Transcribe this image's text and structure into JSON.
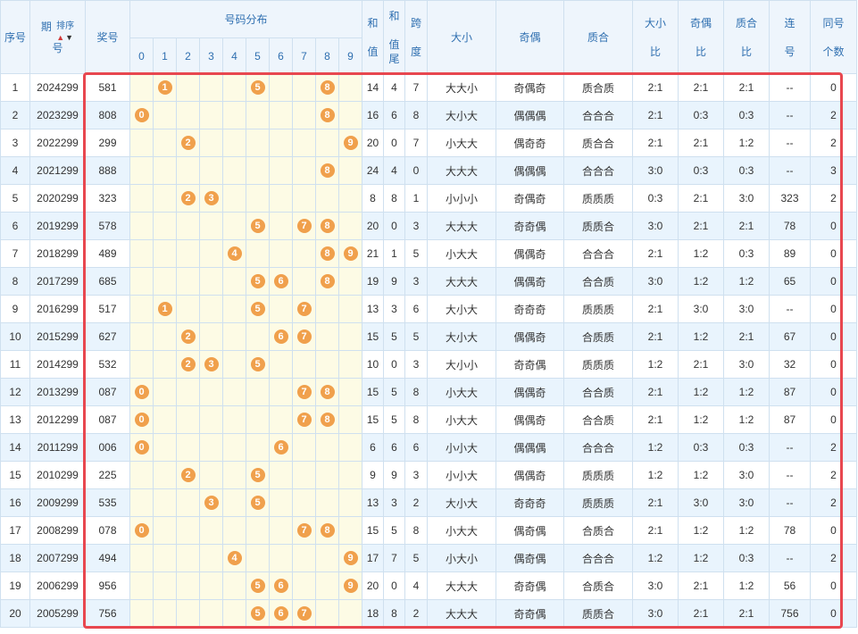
{
  "headers": {
    "seq": "序号",
    "issue_top": "期",
    "issue_bottom": "号",
    "sort_label": "排序",
    "prize": "奖号",
    "distribution": "号码分布",
    "digits": [
      "0",
      "1",
      "2",
      "3",
      "4",
      "5",
      "6",
      "7",
      "8",
      "9"
    ],
    "sum_top": "和",
    "sum_bottom": "值",
    "tail_1": "和",
    "tail_2": "值",
    "tail_3": "尾",
    "span_top": "跨",
    "span_bottom": "度",
    "size": "大小",
    "parity": "奇偶",
    "prime": "质合",
    "size_ratio_top": "大小",
    "size_ratio_bottom": "比",
    "parity_ratio_top": "奇偶",
    "parity_ratio_bottom": "比",
    "prime_ratio_top": "质合",
    "prime_ratio_bottom": "比",
    "consec_top": "连",
    "consec_bottom": "号",
    "same_top": "同号",
    "same_bottom": "个数"
  },
  "colors": {
    "ball": "#f0a04c",
    "highlight_frame": "#e8474f",
    "header_text": "#2f6fb0"
  },
  "rows": [
    {
      "seq": "1",
      "issue": "2024299",
      "prize": "581",
      "sum": "14",
      "tail": "4",
      "span": "7",
      "size": "大大小",
      "parity": "奇偶奇",
      "prime": "质合质",
      "size_ratio": "2:1",
      "parity_ratio": "2:1",
      "prime_ratio": "2:1",
      "consec": "--",
      "same": "0"
    },
    {
      "seq": "2",
      "issue": "2023299",
      "prize": "808",
      "sum": "16",
      "tail": "6",
      "span": "8",
      "size": "大小大",
      "parity": "偶偶偶",
      "prime": "合合合",
      "size_ratio": "2:1",
      "parity_ratio": "0:3",
      "prime_ratio": "0:3",
      "consec": "--",
      "same": "2"
    },
    {
      "seq": "3",
      "issue": "2022299",
      "prize": "299",
      "sum": "20",
      "tail": "0",
      "span": "7",
      "size": "小大大",
      "parity": "偶奇奇",
      "prime": "质合合",
      "size_ratio": "2:1",
      "parity_ratio": "2:1",
      "prime_ratio": "1:2",
      "consec": "--",
      "same": "2"
    },
    {
      "seq": "4",
      "issue": "2021299",
      "prize": "888",
      "sum": "24",
      "tail": "4",
      "span": "0",
      "size": "大大大",
      "parity": "偶偶偶",
      "prime": "合合合",
      "size_ratio": "3:0",
      "parity_ratio": "0:3",
      "prime_ratio": "0:3",
      "consec": "--",
      "same": "3"
    },
    {
      "seq": "5",
      "issue": "2020299",
      "prize": "323",
      "sum": "8",
      "tail": "8",
      "span": "1",
      "size": "小小小",
      "parity": "奇偶奇",
      "prime": "质质质",
      "size_ratio": "0:3",
      "parity_ratio": "2:1",
      "prime_ratio": "3:0",
      "consec": "323",
      "same": "2"
    },
    {
      "seq": "6",
      "issue": "2019299",
      "prize": "578",
      "sum": "20",
      "tail": "0",
      "span": "3",
      "size": "大大大",
      "parity": "奇奇偶",
      "prime": "质质合",
      "size_ratio": "3:0",
      "parity_ratio": "2:1",
      "prime_ratio": "2:1",
      "consec": "78",
      "same": "0"
    },
    {
      "seq": "7",
      "issue": "2018299",
      "prize": "489",
      "sum": "21",
      "tail": "1",
      "span": "5",
      "size": "小大大",
      "parity": "偶偶奇",
      "prime": "合合合",
      "size_ratio": "2:1",
      "parity_ratio": "1:2",
      "prime_ratio": "0:3",
      "consec": "89",
      "same": "0"
    },
    {
      "seq": "8",
      "issue": "2017299",
      "prize": "685",
      "sum": "19",
      "tail": "9",
      "span": "3",
      "size": "大大大",
      "parity": "偶偶奇",
      "prime": "合合质",
      "size_ratio": "3:0",
      "parity_ratio": "1:2",
      "prime_ratio": "1:2",
      "consec": "65",
      "same": "0"
    },
    {
      "seq": "9",
      "issue": "2016299",
      "prize": "517",
      "sum": "13",
      "tail": "3",
      "span": "6",
      "size": "大小大",
      "parity": "奇奇奇",
      "prime": "质质质",
      "size_ratio": "2:1",
      "parity_ratio": "3:0",
      "prime_ratio": "3:0",
      "consec": "--",
      "same": "0"
    },
    {
      "seq": "10",
      "issue": "2015299",
      "prize": "627",
      "sum": "15",
      "tail": "5",
      "span": "5",
      "size": "大小大",
      "parity": "偶偶奇",
      "prime": "合质质",
      "size_ratio": "2:1",
      "parity_ratio": "1:2",
      "prime_ratio": "2:1",
      "consec": "67",
      "same": "0"
    },
    {
      "seq": "11",
      "issue": "2014299",
      "prize": "532",
      "sum": "10",
      "tail": "0",
      "span": "3",
      "size": "大小小",
      "parity": "奇奇偶",
      "prime": "质质质",
      "size_ratio": "1:2",
      "parity_ratio": "2:1",
      "prime_ratio": "3:0",
      "consec": "32",
      "same": "0"
    },
    {
      "seq": "12",
      "issue": "2013299",
      "prize": "087",
      "sum": "15",
      "tail": "5",
      "span": "8",
      "size": "小大大",
      "parity": "偶偶奇",
      "prime": "合合质",
      "size_ratio": "2:1",
      "parity_ratio": "1:2",
      "prime_ratio": "1:2",
      "consec": "87",
      "same": "0"
    },
    {
      "seq": "13",
      "issue": "2012299",
      "prize": "087",
      "sum": "15",
      "tail": "5",
      "span": "8",
      "size": "小大大",
      "parity": "偶偶奇",
      "prime": "合合质",
      "size_ratio": "2:1",
      "parity_ratio": "1:2",
      "prime_ratio": "1:2",
      "consec": "87",
      "same": "0"
    },
    {
      "seq": "14",
      "issue": "2011299",
      "prize": "006",
      "sum": "6",
      "tail": "6",
      "span": "6",
      "size": "小小大",
      "parity": "偶偶偶",
      "prime": "合合合",
      "size_ratio": "1:2",
      "parity_ratio": "0:3",
      "prime_ratio": "0:3",
      "consec": "--",
      "same": "2"
    },
    {
      "seq": "15",
      "issue": "2010299",
      "prize": "225",
      "sum": "9",
      "tail": "9",
      "span": "3",
      "size": "小小大",
      "parity": "偶偶奇",
      "prime": "质质质",
      "size_ratio": "1:2",
      "parity_ratio": "1:2",
      "prime_ratio": "3:0",
      "consec": "--",
      "same": "2"
    },
    {
      "seq": "16",
      "issue": "2009299",
      "prize": "535",
      "sum": "13",
      "tail": "3",
      "span": "2",
      "size": "大小大",
      "parity": "奇奇奇",
      "prime": "质质质",
      "size_ratio": "2:1",
      "parity_ratio": "3:0",
      "prime_ratio": "3:0",
      "consec": "--",
      "same": "2"
    },
    {
      "seq": "17",
      "issue": "2008299",
      "prize": "078",
      "sum": "15",
      "tail": "5",
      "span": "8",
      "size": "小大大",
      "parity": "偶奇偶",
      "prime": "合质合",
      "size_ratio": "2:1",
      "parity_ratio": "1:2",
      "prime_ratio": "1:2",
      "consec": "78",
      "same": "0"
    },
    {
      "seq": "18",
      "issue": "2007299",
      "prize": "494",
      "sum": "17",
      "tail": "7",
      "span": "5",
      "size": "小大小",
      "parity": "偶奇偶",
      "prime": "合合合",
      "size_ratio": "1:2",
      "parity_ratio": "1:2",
      "prime_ratio": "0:3",
      "consec": "--",
      "same": "2"
    },
    {
      "seq": "19",
      "issue": "2006299",
      "prize": "956",
      "sum": "20",
      "tail": "0",
      "span": "4",
      "size": "大大大",
      "parity": "奇奇偶",
      "prime": "合质合",
      "size_ratio": "3:0",
      "parity_ratio": "2:1",
      "prime_ratio": "1:2",
      "consec": "56",
      "same": "0"
    },
    {
      "seq": "20",
      "issue": "2005299",
      "prize": "756",
      "sum": "18",
      "tail": "8",
      "span": "2",
      "size": "大大大",
      "parity": "奇奇偶",
      "prime": "质质合",
      "size_ratio": "3:0",
      "parity_ratio": "2:1",
      "prime_ratio": "2:1",
      "consec": "756",
      "same": "0"
    }
  ]
}
